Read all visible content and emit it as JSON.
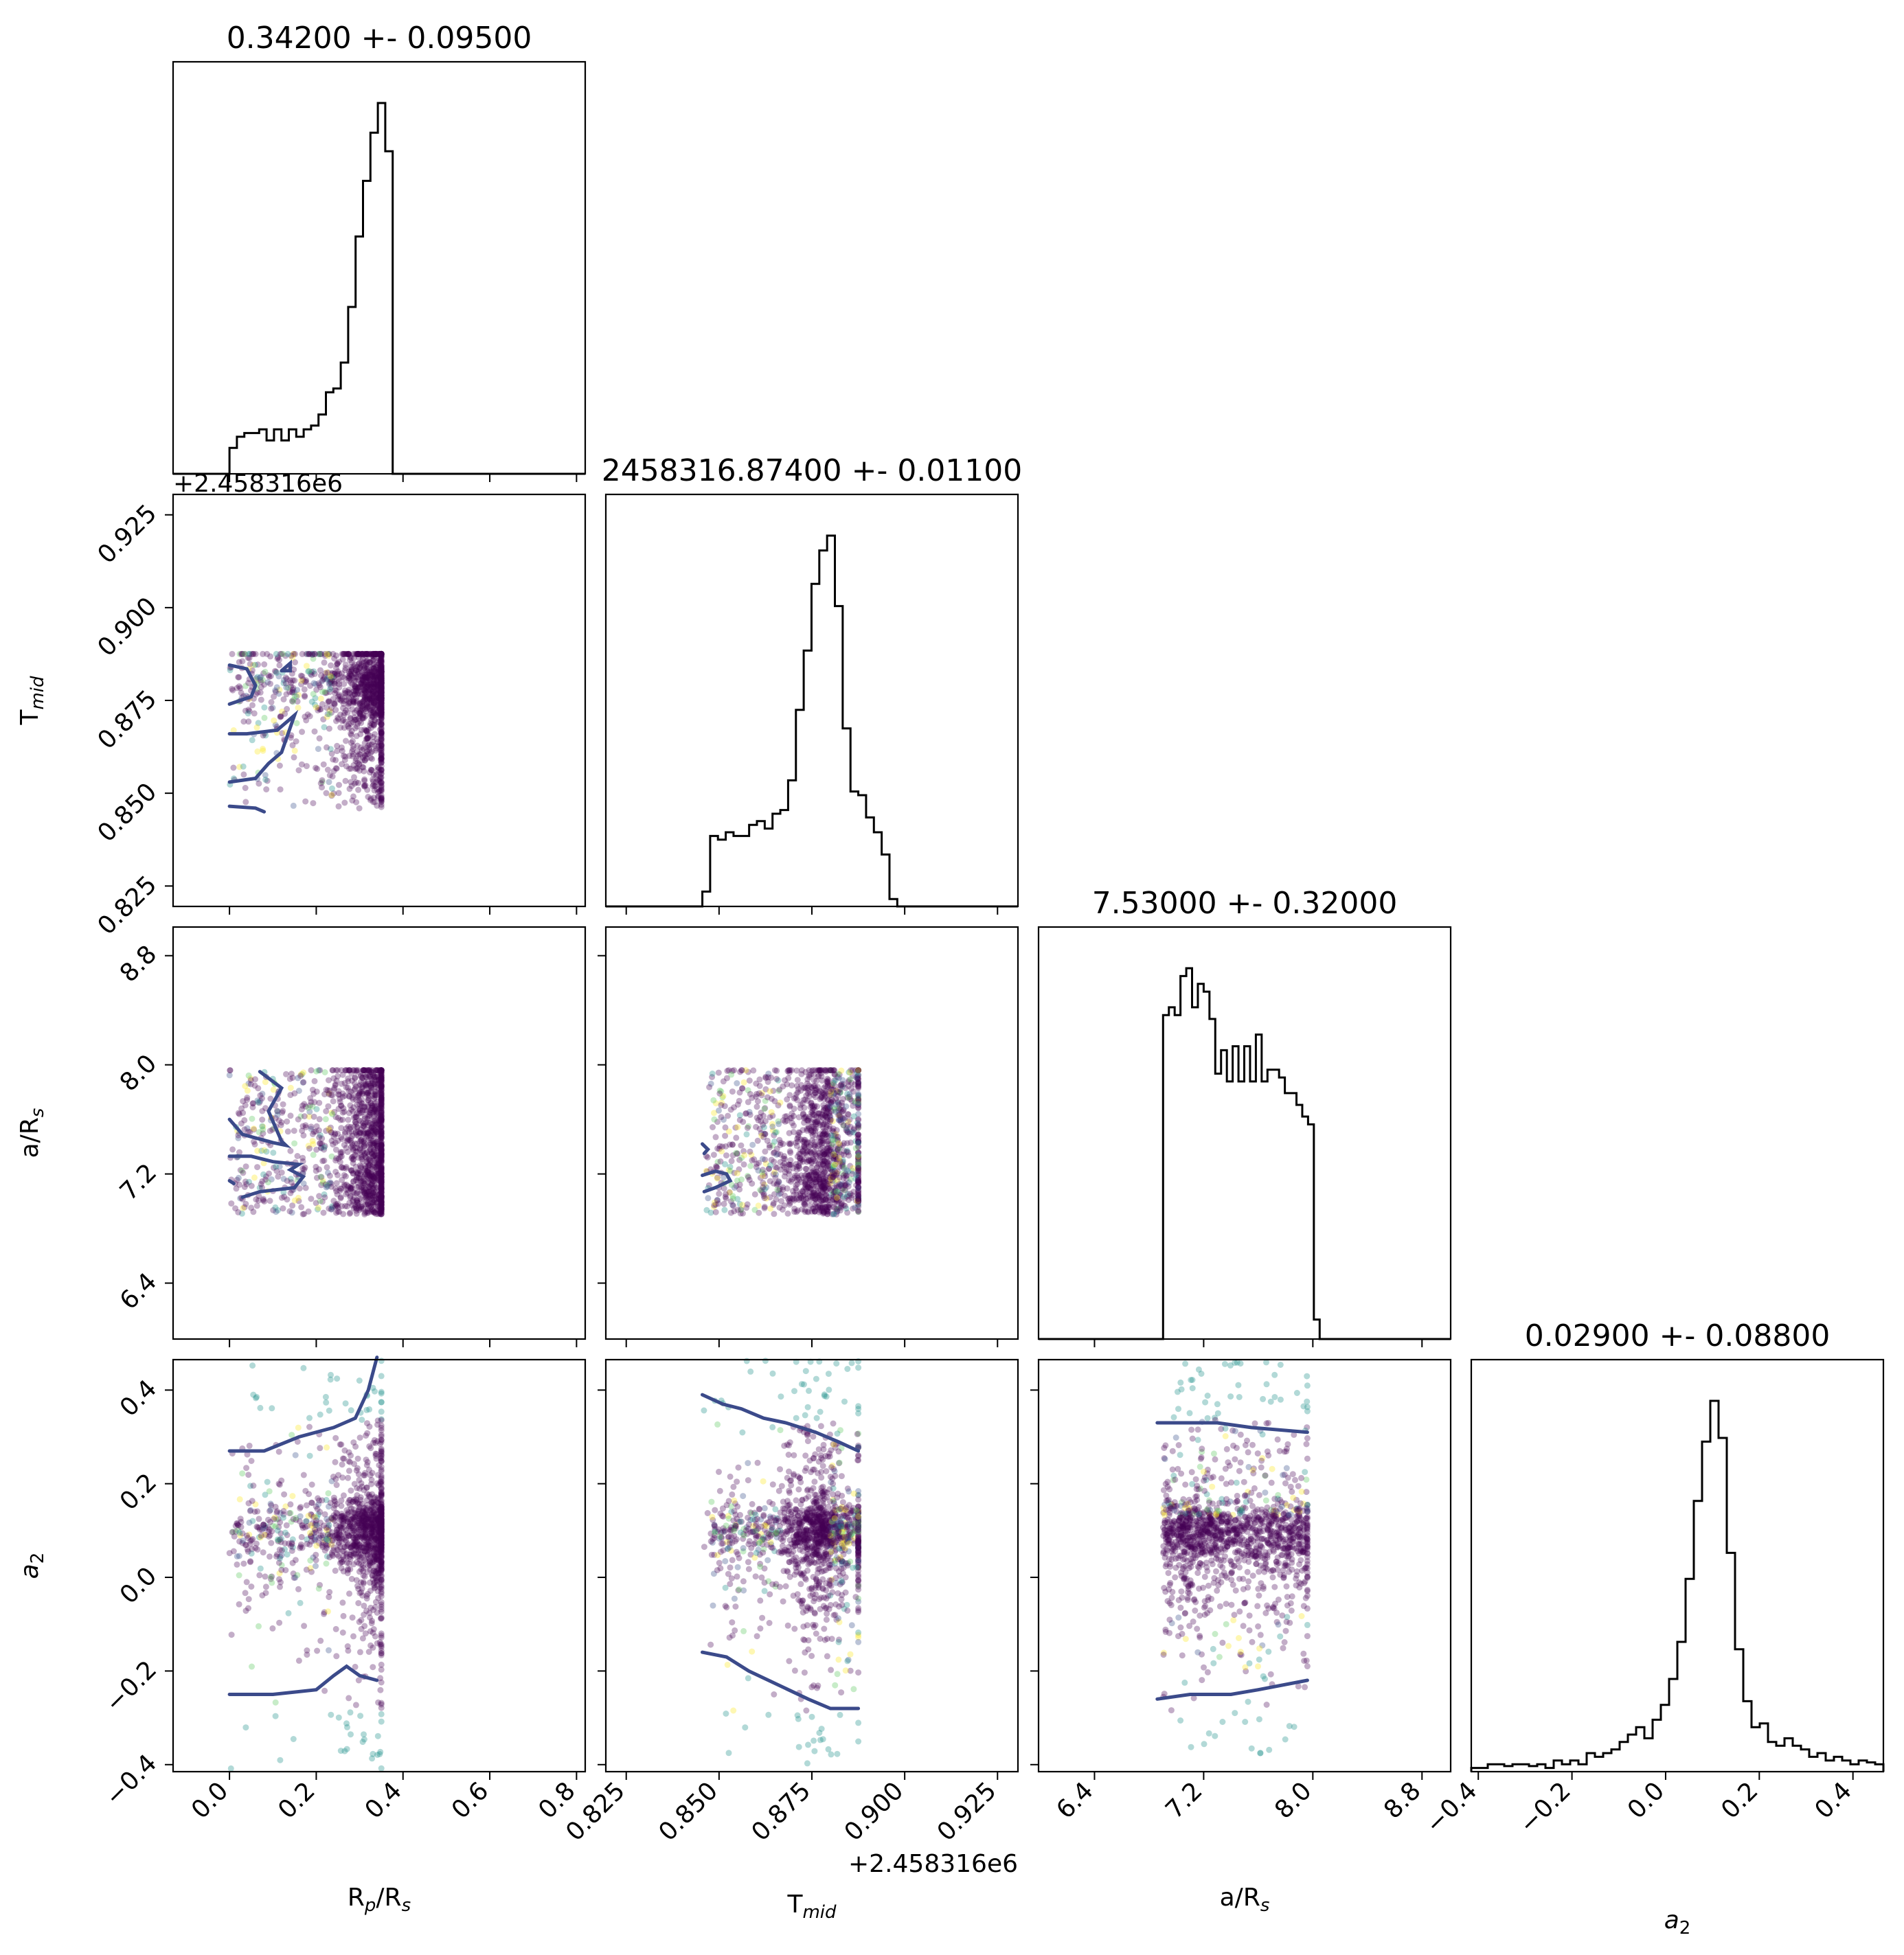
{
  "chart_data": {
    "type": "corner",
    "parameters": [
      {
        "id": "rp",
        "label": "R",
        "label_sub": "p",
        "label_rest": "/R",
        "label_rest_sub": "s",
        "title": "0.34200 +- 0.09500",
        "range": [
          -0.13,
          0.82
        ],
        "ticks": [
          0.0,
          0.2,
          0.4,
          0.6,
          0.8
        ],
        "tick_labels": [
          "0.0",
          "0.2",
          "0.4",
          "0.6",
          "0.8"
        ]
      },
      {
        "id": "tmid",
        "label": "T",
        "label_sub": "mid",
        "label_rest": "",
        "label_rest_sub": "",
        "title": "2458316.87400 +- 0.01100",
        "range": [
          0.8195,
          0.9305
        ],
        "ticks": [
          0.825,
          0.85,
          0.875,
          0.9,
          0.925
        ],
        "tick_labels": [
          "0.825",
          "0.850",
          "0.875",
          "0.900",
          "0.925"
        ],
        "offset": "+2.458316e6"
      },
      {
        "id": "ars",
        "label": "a/R",
        "label_sub": "s",
        "label_rest": "",
        "label_rest_sub": "",
        "title": "7.53000 +- 0.32000",
        "range": [
          5.99,
          9.01
        ],
        "ticks": [
          6.4,
          7.2,
          8.0,
          8.8
        ],
        "tick_labels": [
          "6.4",
          "7.2",
          "8.0",
          "8.8"
        ]
      },
      {
        "id": "a2",
        "label": "a",
        "label_sub": "2",
        "label_rest": "",
        "label_rest_sub": "",
        "italic": true,
        "title": "0.02900 +- 0.08800",
        "range": [
          -0.415,
          0.465
        ],
        "ticks": [
          -0.4,
          -0.2,
          0.0,
          0.2,
          0.4
        ],
        "tick_labels": [
          "−0.4",
          "−0.2",
          "0.0",
          "0.2",
          "0.4"
        ]
      }
    ],
    "histograms": [
      {
        "param": "rp",
        "bin_start": 0.0,
        "bin_width": 0.0171,
        "counts": [
          0.07,
          0.1,
          0.11,
          0.11,
          0.12,
          0.09,
          0.12,
          0.09,
          0.12,
          0.1,
          0.12,
          0.13,
          0.16,
          0.22,
          0.23,
          0.3,
          0.45,
          0.64,
          0.79,
          0.92,
          1.0,
          0.87,
          0.0
        ]
      },
      {
        "param": "tmid",
        "bin_start": 0.8455,
        "bin_width": 0.0021,
        "counts": [
          0.04,
          0.19,
          0.18,
          0.2,
          0.19,
          0.19,
          0.22,
          0.23,
          0.21,
          0.25,
          0.26,
          0.34,
          0.53,
          0.69,
          0.87,
          0.96,
          1.0,
          0.81,
          0.48,
          0.31,
          0.3,
          0.24,
          0.2,
          0.14,
          0.02,
          0.0
        ]
      },
      {
        "param": "ars",
        "bin_start": 6.86,
        "bin_width": 0.0425,
        "counts": [
          0.0,
          0.83,
          0.85,
          0.83,
          0.93,
          0.95,
          0.85,
          0.91,
          0.89,
          0.82,
          0.68,
          0.74,
          0.66,
          0.75,
          0.66,
          0.75,
          0.66,
          0.78,
          0.66,
          0.69,
          0.69,
          0.67,
          0.63,
          0.63,
          0.6,
          0.57,
          0.55,
          0.05,
          0.0
        ]
      },
      {
        "param": "a2",
        "bin_start": -0.415,
        "bin_width": 0.0176,
        "counts": [
          0.01,
          0.01,
          0.02,
          0.02,
          0.015,
          0.02,
          0.02,
          0.015,
          0.02,
          0.01,
          0.03,
          0.02,
          0.03,
          0.02,
          0.05,
          0.04,
          0.05,
          0.06,
          0.08,
          0.1,
          0.12,
          0.09,
          0.14,
          0.18,
          0.25,
          0.35,
          0.52,
          0.73,
          0.89,
          1.0,
          0.9,
          0.59,
          0.33,
          0.19,
          0.12,
          0.13,
          0.08,
          0.07,
          0.09,
          0.07,
          0.06,
          0.04,
          0.05,
          0.03,
          0.04,
          0.03,
          0.02,
          0.03,
          0.025,
          0.02
        ]
      }
    ],
    "scatter_extents": {
      "rp": [
        0.0,
        0.35
      ],
      "tmid": [
        0.8455,
        0.8875
      ],
      "ars": [
        6.86,
        7.96
      ],
      "a2": [
        -0.42,
        0.47
      ]
    },
    "scatter_colors": [
      "#440154",
      "#3b528b",
      "#21918c",
      "#5ec962",
      "#fde725"
    ],
    "contour_color": "#3b4a8a",
    "contours": [
      {
        "x": "rp",
        "y": "tmid",
        "lines": [
          [
            [
              0.0,
              0.8845
            ],
            [
              0.04,
              0.8835
            ],
            [
              0.06,
              0.879
            ],
            [
              0.05,
              0.876
            ],
            [
              0.0,
              0.874
            ]
          ],
          [
            [
              0.0,
              0.866
            ],
            [
              0.04,
              0.866
            ],
            [
              0.11,
              0.867
            ],
            [
              0.15,
              0.871
            ],
            [
              0.12,
              0.861
            ],
            [
              0.09,
              0.858
            ],
            [
              0.06,
              0.854
            ],
            [
              0.0,
              0.853
            ]
          ],
          [
            [
              0.0,
              0.8465
            ],
            [
              0.06,
              0.846
            ],
            [
              0.08,
              0.845
            ]
          ],
          [
            [
              0.12,
              0.883
            ],
            [
              0.14,
              0.885
            ],
            [
              0.14,
              0.883
            ],
            [
              0.12,
              0.883
            ]
          ]
        ]
      },
      {
        "x": "rp",
        "y": "ars",
        "lines": [
          [
            [
              0.07,
              7.95
            ],
            [
              0.12,
              7.83
            ],
            [
              0.09,
              7.66
            ],
            [
              0.12,
              7.44
            ],
            [
              0.13,
              7.41
            ],
            [
              0.1,
              7.43
            ],
            [
              0.03,
              7.49
            ],
            [
              0.0,
              7.6
            ]
          ],
          [
            [
              0.0,
              7.33
            ],
            [
              0.05,
              7.33
            ],
            [
              0.1,
              7.29
            ],
            [
              0.16,
              7.27
            ],
            [
              0.14,
              7.23
            ],
            [
              0.17,
              7.18
            ],
            [
              0.15,
              7.1
            ],
            [
              0.07,
              7.07
            ],
            [
              0.03,
              7.03
            ]
          ],
          [
            [
              0.0,
              7.15
            ],
            [
              0.01,
              7.13
            ]
          ]
        ]
      },
      {
        "x": "tmid",
        "y": "ars",
        "lines": [
          [
            [
              0.8455,
              7.19
            ],
            [
              0.849,
              7.22
            ],
            [
              0.852,
              7.2
            ],
            [
              0.853,
              7.15
            ],
            [
              0.849,
              7.1
            ],
            [
              0.846,
              7.07
            ]
          ],
          [
            [
              0.8455,
              7.42
            ],
            [
              0.847,
              7.38
            ],
            [
              0.846,
              7.35
            ]
          ]
        ]
      },
      {
        "x": "rp",
        "y": "a2",
        "lines": [
          [
            [
              0.0,
              0.27
            ],
            [
              0.08,
              0.27
            ],
            [
              0.16,
              0.3
            ],
            [
              0.24,
              0.32
            ],
            [
              0.29,
              0.34
            ],
            [
              0.32,
              0.4
            ],
            [
              0.34,
              0.47
            ]
          ],
          [
            [
              0.0,
              -0.25
            ],
            [
              0.1,
              -0.25
            ],
            [
              0.2,
              -0.24
            ],
            [
              0.24,
              -0.21
            ],
            [
              0.27,
              -0.19
            ],
            [
              0.3,
              -0.21
            ],
            [
              0.34,
              -0.22
            ]
          ]
        ]
      },
      {
        "x": "tmid",
        "y": "a2",
        "lines": [
          [
            [
              0.8455,
              0.39
            ],
            [
              0.851,
              0.37
            ],
            [
              0.856,
              0.36
            ],
            [
              0.862,
              0.34
            ],
            [
              0.868,
              0.33
            ],
            [
              0.876,
              0.31
            ],
            [
              0.882,
              0.29
            ],
            [
              0.8875,
              0.27
            ]
          ],
          [
            [
              0.8455,
              -0.16
            ],
            [
              0.852,
              -0.17
            ],
            [
              0.858,
              -0.2
            ],
            [
              0.866,
              -0.23
            ],
            [
              0.874,
              -0.26
            ],
            [
              0.88,
              -0.28
            ],
            [
              0.8875,
              -0.28
            ]
          ]
        ]
      },
      {
        "x": "ars",
        "y": "a2",
        "lines": [
          [
            [
              6.86,
              0.33
            ],
            [
              7.1,
              0.33
            ],
            [
              7.3,
              0.33
            ],
            [
              7.55,
              0.32
            ],
            [
              7.96,
              0.31
            ]
          ],
          [
            [
              6.86,
              -0.26
            ],
            [
              7.1,
              -0.25
            ],
            [
              7.4,
              -0.25
            ],
            [
              7.6,
              -0.24
            ],
            [
              7.96,
              -0.22
            ]
          ]
        ]
      }
    ]
  }
}
